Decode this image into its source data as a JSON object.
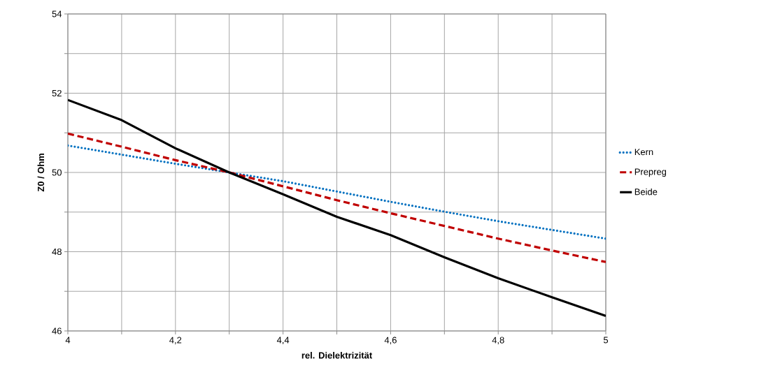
{
  "chart_data": {
    "type": "line",
    "xlabel": "rel. Dielektrizität",
    "ylabel": "Z0 / Ohm",
    "x": [
      4,
      4.1,
      4.2,
      4.3,
      4.4,
      4.5,
      4.6,
      4.7,
      4.8,
      4.9,
      5
    ],
    "series": [
      {
        "name": "Kern",
        "color": "#0070c0",
        "line_style": "dotted",
        "values": [
          50.68,
          50.45,
          50.22,
          50,
          49.78,
          49.52,
          49.26,
          49.01,
          48.77,
          48.55,
          48.33
        ]
      },
      {
        "name": "Prepreg",
        "color": "#c00000",
        "line_style": "dashed",
        "values": [
          50.98,
          50.65,
          50.31,
          50,
          49.65,
          49.3,
          48.97,
          48.65,
          48.33,
          48.03,
          47.74
        ]
      },
      {
        "name": "Beide",
        "color": "#000000",
        "line_style": "solid",
        "values": [
          51.83,
          51.32,
          50.61,
          50,
          49.45,
          48.88,
          48.42,
          47.86,
          47.33,
          46.85,
          46.38
        ]
      }
    ],
    "xlim": [
      4,
      5
    ],
    "ylim": [
      46,
      54
    ],
    "xticks": [
      {
        "value": 4,
        "label": "4"
      },
      {
        "value": 4.1,
        "label": null
      },
      {
        "value": 4.2,
        "label": "4,2"
      },
      {
        "value": 4.3,
        "label": null
      },
      {
        "value": 4.4,
        "label": "4,4"
      },
      {
        "value": 4.5,
        "label": null
      },
      {
        "value": 4.6,
        "label": "4,6"
      },
      {
        "value": 4.7,
        "label": null
      },
      {
        "value": 4.8,
        "label": "4,8"
      },
      {
        "value": 4.9,
        "label": null
      },
      {
        "value": 5,
        "label": "5"
      }
    ],
    "yticks": [
      46,
      {
        "value": 47,
        "label": null
      },
      48,
      {
        "value": 49,
        "label": null
      },
      50,
      {
        "value": 51,
        "label": null
      },
      52,
      {
        "value": 53,
        "label": null
      },
      54
    ],
    "grid": true,
    "legend": "right",
    "marker": "none"
  }
}
